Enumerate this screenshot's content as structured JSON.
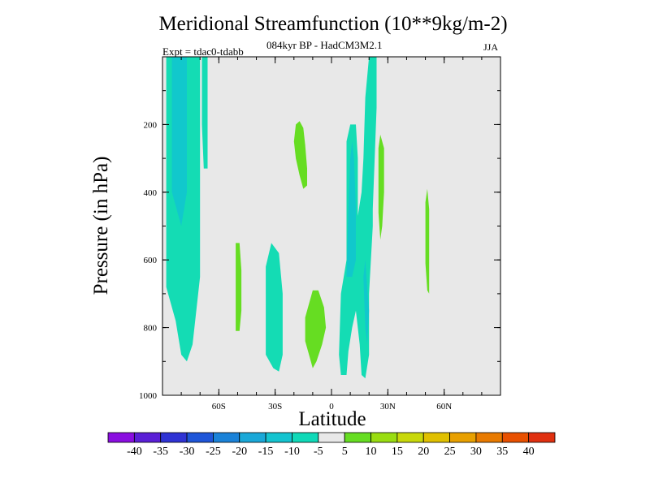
{
  "chart_data": {
    "type": "contour",
    "title": "Meridional Streamfunction (10**9kg/m-2)",
    "subtitle": "084kyr BP - HadCM3M2.1",
    "left_label": "Expt = tdac0-tdabb",
    "season": "JJA",
    "xlabel": "Latitude",
    "ylabel": "Pressure (in hPa)",
    "xlim": [
      -90,
      90
    ],
    "ylim": [
      1000,
      0
    ],
    "xticks": [
      {
        "value": -60,
        "label": "60S"
      },
      {
        "value": -30,
        "label": "30S"
      },
      {
        "value": 0,
        "label": "0"
      },
      {
        "value": 30,
        "label": "30N"
      },
      {
        "value": 60,
        "label": "60N"
      }
    ],
    "yticks": [
      {
        "value": 200,
        "label": "200"
      },
      {
        "value": 400,
        "label": "400"
      },
      {
        "value": 600,
        "label": "600"
      },
      {
        "value": 800,
        "label": "800"
      },
      {
        "value": 1000,
        "label": "1000"
      }
    ],
    "colorbar": {
      "levels": [
        -40,
        -35,
        -30,
        -25,
        -20,
        -15,
        -10,
        -5,
        5,
        10,
        15,
        20,
        25,
        30,
        35,
        40
      ],
      "colors": [
        "#8a0ee0",
        "#5a1fd6",
        "#2f33d4",
        "#1e55d8",
        "#1a82d8",
        "#1aa8d8",
        "#14c4d0",
        "#0fd9b8",
        "#e8e8e8",
        "#66dd22",
        "#99dd11",
        "#c8d80a",
        "#e0c000",
        "#e8a000",
        "#e87a00",
        "#e85000",
        "#e03010"
      ]
    },
    "regions": [
      {
        "level": "-5",
        "color": "#14dcb4",
        "points": [
          [
            -88,
            0
          ],
          [
            -70,
            0
          ],
          [
            -70,
            65
          ],
          [
            -74,
            85
          ],
          [
            -77,
            90
          ],
          [
            -80,
            88
          ],
          [
            -83,
            78
          ],
          [
            -88,
            68
          ]
        ]
      },
      {
        "level": "-5",
        "color": "#14dcb4",
        "points": [
          [
            -69,
            0
          ],
          [
            -66,
            0
          ],
          [
            -66,
            33
          ],
          [
            -68,
            33
          ],
          [
            -69,
            20
          ]
        ]
      },
      {
        "level": "-10",
        "color": "#11c8cc",
        "points": [
          [
            -85,
            0
          ],
          [
            -77,
            0
          ],
          [
            -77,
            40
          ],
          [
            -80,
            50
          ],
          [
            -85,
            40
          ]
        ]
      },
      {
        "level": "-5",
        "color": "#14dcb4",
        "points": [
          [
            -35,
            62
          ],
          [
            -32,
            55
          ],
          [
            -28,
            58
          ],
          [
            -26,
            70
          ],
          [
            -26,
            88
          ],
          [
            -28,
            93
          ],
          [
            -31,
            92
          ],
          [
            -35,
            88
          ]
        ]
      },
      {
        "level": "-5",
        "color": "#14dcb4",
        "points": [
          [
            4,
            88
          ],
          [
            5,
            70
          ],
          [
            8,
            60
          ],
          [
            8,
            25
          ],
          [
            10,
            20
          ],
          [
            13,
            20
          ],
          [
            14,
            30
          ],
          [
            14,
            47
          ],
          [
            16,
            40
          ],
          [
            17,
            30
          ],
          [
            18,
            12
          ],
          [
            20,
            0
          ],
          [
            24,
            0
          ],
          [
            24,
            15
          ],
          [
            22,
            45
          ],
          [
            22,
            50
          ],
          [
            20,
            70
          ],
          [
            20,
            88
          ],
          [
            18,
            95
          ],
          [
            16,
            94
          ],
          [
            15,
            85
          ],
          [
            13,
            75
          ],
          [
            11,
            80
          ],
          [
            9,
            87
          ],
          [
            8,
            94
          ],
          [
            5,
            94
          ]
        ]
      },
      {
        "level": "-10",
        "color": "#11c8cc",
        "points": [
          [
            8,
            65
          ],
          [
            9,
            45
          ],
          [
            10,
            30
          ],
          [
            11,
            25
          ],
          [
            12,
            30
          ],
          [
            13,
            45
          ],
          [
            13,
            60
          ],
          [
            11,
            65
          ]
        ]
      },
      {
        "level": "-10",
        "color": "#11c8cc",
        "points": [
          [
            17,
            65
          ],
          [
            18,
            60
          ],
          [
            19,
            68
          ],
          [
            20,
            75
          ],
          [
            19,
            85
          ],
          [
            18,
            80
          ]
        ]
      },
      {
        "level": "5",
        "color": "#66dd22",
        "points": [
          [
            -19,
            20
          ],
          [
            -17,
            19
          ],
          [
            -15,
            21
          ],
          [
            -14,
            26
          ],
          [
            -13,
            33
          ],
          [
            -13,
            38
          ],
          [
            -15,
            39
          ],
          [
            -17,
            35
          ],
          [
            -19,
            30
          ],
          [
            -20,
            25
          ]
        ]
      },
      {
        "level": "5",
        "color": "#66dd22",
        "points": [
          [
            -51,
            55
          ],
          [
            -49,
            55
          ],
          [
            -48,
            63
          ],
          [
            -48,
            75
          ],
          [
            -49,
            81
          ],
          [
            -51,
            81
          ],
          [
            -51,
            70
          ]
        ]
      },
      {
        "level": "5",
        "color": "#66dd22",
        "points": [
          [
            -14,
            77
          ],
          [
            -10,
            69
          ],
          [
            -7,
            69
          ],
          [
            -4,
            74
          ],
          [
            -3,
            80
          ],
          [
            -5,
            85
          ],
          [
            -8,
            90
          ],
          [
            -10,
            92
          ],
          [
            -12,
            88
          ],
          [
            -14,
            84
          ]
        ]
      },
      {
        "level": "5",
        "color": "#66dd22",
        "points": [
          [
            25,
            27
          ],
          [
            26,
            23
          ],
          [
            28,
            27
          ],
          [
            28,
            40
          ],
          [
            27,
            50
          ],
          [
            26,
            54
          ],
          [
            25,
            46
          ]
        ]
      },
      {
        "level": "5",
        "color": "#66dd22",
        "points": [
          [
            50,
            43
          ],
          [
            51,
            39
          ],
          [
            52,
            45
          ],
          [
            52,
            70
          ],
          [
            51,
            69
          ],
          [
            50,
            61
          ]
        ]
      }
    ]
  }
}
